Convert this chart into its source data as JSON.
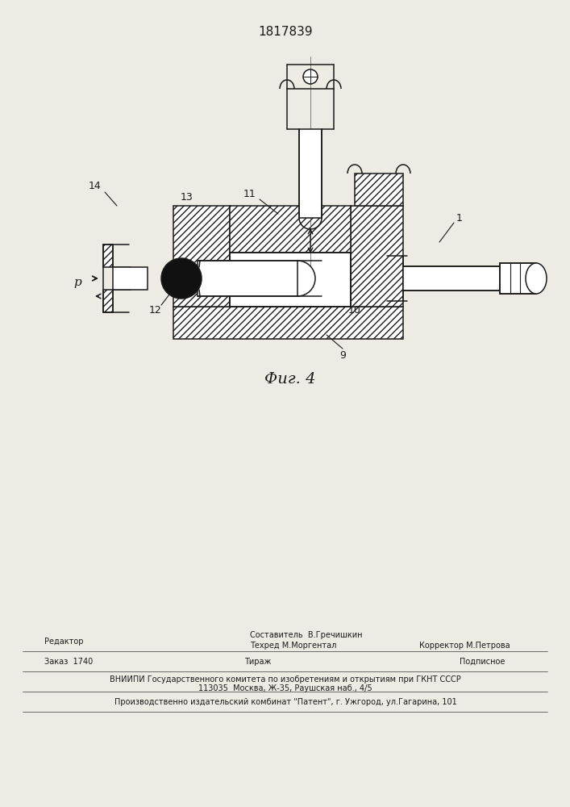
{
  "patent_number": "1817839",
  "fig_label": "Фиг. 4",
  "bg": "#eeebe4",
  "lc": "#1a1a1a",
  "footer_line1_left": "Редактор",
  "footer_line1_center_top": "Составитель  В.Гречишкин",
  "footer_line1_center": "Техред М.Моргентал",
  "footer_line1_right": "Корректор М.Петрова",
  "footer_line2_left": "Заказ  1740",
  "footer_line2_center": "Тираж",
  "footer_line2_right": "Подписное",
  "footer_line3": "ВНИИПИ Государственного комитета по изобретениям и открытиям при ГКНТ СССР",
  "footer_line4": "113035  Москва, Ж-35, Раушская наб., 4/5",
  "footer_line5": "Производственно издательский комбинат \"Патент\", г. Ужгород, ул.Гагарина, 101"
}
